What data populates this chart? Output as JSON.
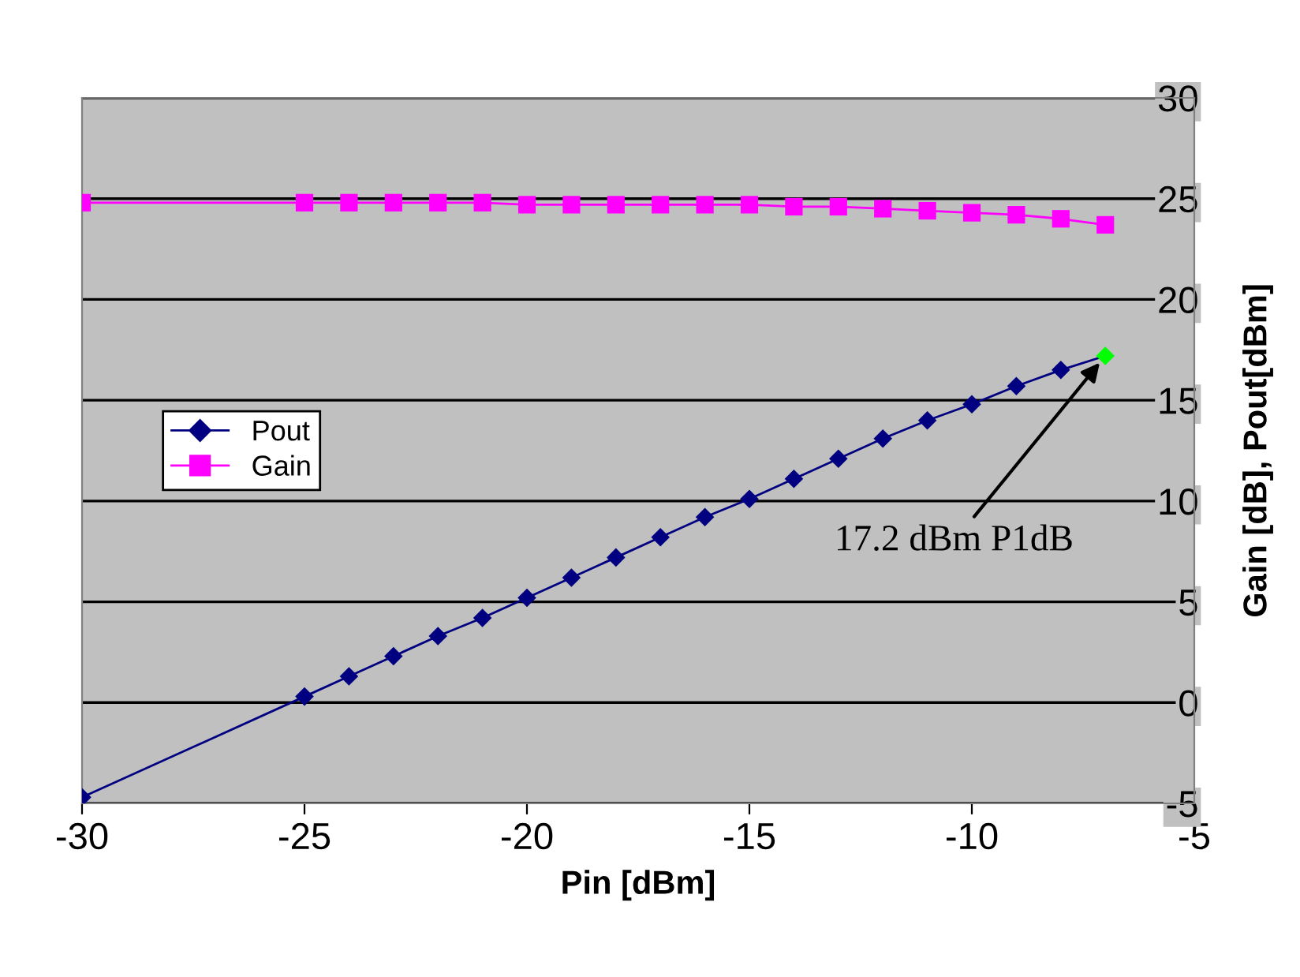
{
  "chart_data": {
    "type": "line",
    "xlabel": "Pin [dBm]",
    "ylabel": "Gain [dB], Pout[dBm]",
    "x": [
      -30,
      -25,
      -24,
      -23,
      -22,
      -21,
      -20,
      -19,
      -18,
      -17,
      -16,
      -15,
      -14,
      -13,
      -12,
      -11,
      -10,
      -9,
      -8,
      -7
    ],
    "series": [
      {
        "name": "Pout",
        "color": "#000080",
        "marker": "diamond",
        "colors": [
          "#000080",
          "#000080",
          "#000080",
          "#000080",
          "#000080",
          "#000080",
          "#000080",
          "#000080",
          "#000080",
          "#000080",
          "#000080",
          "#000080",
          "#000080",
          "#000080",
          "#000080",
          "#000080",
          "#000080",
          "#000080",
          "#000080",
          "#00ff00"
        ],
        "values": [
          -4.7,
          0.3,
          1.3,
          2.3,
          3.3,
          4.2,
          5.2,
          6.2,
          7.2,
          8.2,
          9.2,
          10.1,
          11.1,
          12.1,
          13.1,
          14.0,
          14.8,
          15.7,
          16.5,
          17.2
        ]
      },
      {
        "name": "Gain",
        "color": "#ff00ff",
        "marker": "square",
        "values": [
          24.8,
          24.8,
          24.8,
          24.8,
          24.8,
          24.8,
          24.7,
          24.7,
          24.7,
          24.7,
          24.7,
          24.7,
          24.6,
          24.6,
          24.5,
          24.4,
          24.3,
          24.2,
          24.0,
          23.7
        ]
      }
    ],
    "xlim": [
      -30,
      -5
    ],
    "xticks": [
      -30,
      -25,
      -20,
      -15,
      -10,
      -5
    ],
    "ylim": [
      -5,
      30
    ],
    "yticks": [
      -5,
      0,
      5,
      10,
      15,
      20,
      25,
      30
    ],
    "grid": "y",
    "legend": "left",
    "annotations": [
      {
        "text": "17.2 dBm P1dB",
        "x": -7,
        "y": 17.2
      }
    ]
  }
}
